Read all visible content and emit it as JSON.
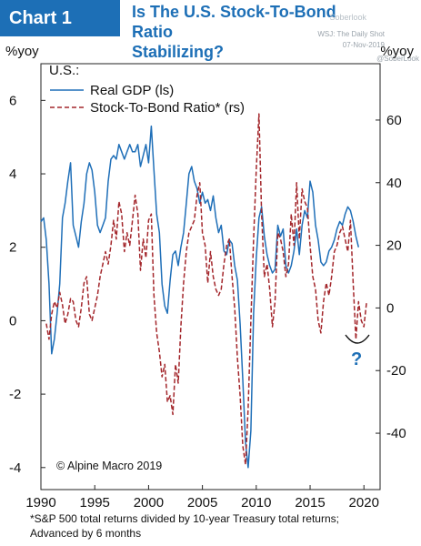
{
  "header": {
    "tag": "Chart 1",
    "title_line1": "Is The U.S. Stock-To-Bond Ratio",
    "title_line2": "Stabilizing?"
  },
  "watermark": {
    "line1": "Soberlook",
    "line2": "WSJ: The Daily Shot",
    "line3": "07-Nov-2019",
    "line4": "@SoberLook"
  },
  "footnote": {
    "line1": "*S&P 500 total returns divided by 10-year Treasury total returns;",
    "line2": "Advanced by 6 months"
  },
  "colors": {
    "gdp": "#1f6fb8",
    "ratio": "#a3262b",
    "accent": "#1d6fb6"
  },
  "chart_data": {
    "type": "line",
    "title": "Is The U.S. Stock-To-Bond Ratio Stabilizing?",
    "panel_label": "U.S.:",
    "ylabel_left": "%yoy",
    "ylabel_right": "%yoy",
    "copyright": "© Alpine Macro 2019",
    "annotation": "?",
    "xlim": [
      1990,
      2021.5
    ],
    "ylim_left": [
      -4.6,
      7.0
    ],
    "ylim_right": [
      -58,
      78
    ],
    "x_ticks": [
      1990,
      1995,
      2000,
      2005,
      2010,
      2015,
      2020
    ],
    "y_ticks_left": [
      -4,
      -2,
      0,
      2,
      4,
      6
    ],
    "y_ticks_right": [
      -40,
      -20,
      0,
      20,
      40,
      60
    ],
    "legend_position": "top-left",
    "series": [
      {
        "name": "Real GDP (ls)",
        "axis": "left",
        "style": "solid",
        "x": [
          1990.0,
          1990.25,
          1990.5,
          1990.75,
          1991.0,
          1991.25,
          1991.5,
          1991.75,
          1992.0,
          1992.25,
          1992.5,
          1992.75,
          1993.0,
          1993.25,
          1993.5,
          1993.75,
          1994.0,
          1994.25,
          1994.5,
          1994.75,
          1995.0,
          1995.25,
          1995.5,
          1995.75,
          1996.0,
          1996.25,
          1996.5,
          1996.75,
          1997.0,
          1997.25,
          1997.5,
          1997.75,
          1998.0,
          1998.25,
          1998.5,
          1998.75,
          1999.0,
          1999.25,
          1999.5,
          1999.75,
          2000.0,
          2000.25,
          2000.5,
          2000.75,
          2001.0,
          2001.25,
          2001.5,
          2001.75,
          2002.0,
          2002.25,
          2002.5,
          2002.75,
          2003.0,
          2003.25,
          2003.5,
          2003.75,
          2004.0,
          2004.25,
          2004.5,
          2004.75,
          2005.0,
          2005.25,
          2005.5,
          2005.75,
          2006.0,
          2006.25,
          2006.5,
          2006.75,
          2007.0,
          2007.25,
          2007.5,
          2007.75,
          2008.0,
          2008.25,
          2008.5,
          2008.75,
          2009.0,
          2009.25,
          2009.5,
          2009.75,
          2010.0,
          2010.25,
          2010.5,
          2010.75,
          2011.0,
          2011.25,
          2011.5,
          2011.75,
          2012.0,
          2012.25,
          2012.5,
          2012.75,
          2013.0,
          2013.25,
          2013.5,
          2013.75,
          2014.0,
          2014.25,
          2014.5,
          2014.75,
          2015.0,
          2015.25,
          2015.5,
          2015.75,
          2016.0,
          2016.25,
          2016.5,
          2016.75,
          2017.0,
          2017.25,
          2017.5,
          2017.75,
          2018.0,
          2018.25,
          2018.5,
          2018.75,
          2019.0,
          2019.25,
          2019.5
        ],
        "values": [
          2.7,
          2.8,
          2.2,
          1.0,
          -0.9,
          -0.5,
          0.2,
          1.0,
          2.8,
          3.2,
          3.8,
          4.3,
          2.6,
          2.3,
          2.0,
          2.7,
          3.2,
          4.0,
          4.3,
          4.1,
          3.5,
          2.6,
          2.4,
          2.6,
          2.8,
          3.8,
          4.4,
          4.5,
          4.4,
          4.8,
          4.6,
          4.4,
          4.6,
          4.8,
          4.6,
          4.6,
          4.8,
          4.2,
          4.5,
          4.8,
          4.3,
          5.3,
          4.1,
          2.9,
          2.4,
          1.0,
          0.4,
          0.2,
          1.1,
          1.8,
          1.9,
          1.5,
          2.0,
          2.4,
          3.2,
          4.0,
          4.2,
          3.8,
          3.6,
          3.2,
          3.5,
          3.2,
          3.3,
          3.0,
          3.4,
          2.8,
          2.4,
          2.6,
          1.9,
          1.8,
          2.2,
          2.1,
          1.5,
          1.1,
          -0.1,
          -1.6,
          -3.3,
          -4.0,
          -3.0,
          0.2,
          1.7,
          2.8,
          3.1,
          2.3,
          1.8,
          1.5,
          1.3,
          1.4,
          2.6,
          2.3,
          2.5,
          1.5,
          1.3,
          1.5,
          1.9,
          2.5,
          1.8,
          2.6,
          3.0,
          2.8,
          3.8,
          3.5,
          2.6,
          2.2,
          1.6,
          1.5,
          1.6,
          1.9,
          2.0,
          2.2,
          2.5,
          2.7,
          2.6,
          2.9,
          3.1,
          3.0,
          2.7,
          2.3,
          2.0
        ]
      },
      {
        "name": "Stock-To-Bond Ratio* (rs)",
        "axis": "right",
        "style": "dashed",
        "x": [
          1990.5,
          1990.75,
          1991.0,
          1991.25,
          1991.5,
          1991.75,
          1992.0,
          1992.25,
          1992.5,
          1992.75,
          1993.0,
          1993.25,
          1993.5,
          1993.75,
          1994.0,
          1994.25,
          1994.5,
          1994.75,
          1995.0,
          1995.25,
          1995.5,
          1995.75,
          1996.0,
          1996.25,
          1996.5,
          1996.75,
          1997.0,
          1997.25,
          1997.5,
          1997.75,
          1998.0,
          1998.25,
          1998.5,
          1998.75,
          1999.0,
          1999.25,
          1999.5,
          1999.75,
          2000.0,
          2000.25,
          2000.5,
          2000.75,
          2001.0,
          2001.25,
          2001.5,
          2001.75,
          2002.0,
          2002.25,
          2002.5,
          2002.75,
          2003.0,
          2003.25,
          2003.5,
          2003.75,
          2004.0,
          2004.25,
          2004.5,
          2004.75,
          2005.0,
          2005.25,
          2005.5,
          2005.75,
          2006.0,
          2006.25,
          2006.5,
          2006.75,
          2007.0,
          2007.25,
          2007.5,
          2007.75,
          2008.0,
          2008.25,
          2008.5,
          2008.75,
          2009.0,
          2009.25,
          2009.5,
          2009.75,
          2010.0,
          2010.25,
          2010.5,
          2010.75,
          2011.0,
          2011.25,
          2011.5,
          2011.75,
          2012.0,
          2012.25,
          2012.5,
          2012.75,
          2013.0,
          2013.25,
          2013.5,
          2013.75,
          2014.0,
          2014.25,
          2014.5,
          2014.75,
          2015.0,
          2015.25,
          2015.5,
          2015.75,
          2016.0,
          2016.25,
          2016.5,
          2016.75,
          2017.0,
          2017.25,
          2017.5,
          2017.75,
          2018.0,
          2018.25,
          2018.5,
          2018.75,
          2019.0,
          2019.25,
          2019.5,
          2019.75,
          2020.0,
          2020.25
        ],
        "values": [
          -5,
          -10,
          -2,
          2,
          0,
          5,
          1,
          -5,
          -2,
          3,
          2,
          -4,
          -6,
          0,
          8,
          10,
          -2,
          -4,
          0,
          4,
          10,
          14,
          18,
          14,
          20,
          28,
          22,
          34,
          30,
          18,
          24,
          20,
          28,
          36,
          30,
          12,
          22,
          16,
          28,
          30,
          4,
          -8,
          -14,
          -22,
          -18,
          -30,
          -28,
          -34,
          -18,
          -24,
          -6,
          8,
          18,
          24,
          26,
          28,
          36,
          40,
          24,
          20,
          8,
          18,
          10,
          6,
          4,
          6,
          14,
          20,
          22,
          10,
          0,
          -16,
          -28,
          -44,
          -50,
          -32,
          -4,
          22,
          44,
          62,
          30,
          10,
          14,
          6,
          -6,
          2,
          24,
          22,
          18,
          10,
          14,
          30,
          20,
          40,
          22,
          38,
          34,
          32,
          20,
          10,
          6,
          -4,
          -8,
          2,
          8,
          4,
          10,
          18,
          20,
          24,
          26,
          22,
          18,
          28,
          8,
          -10,
          2,
          -4,
          -6,
          2
        ]
      }
    ]
  }
}
